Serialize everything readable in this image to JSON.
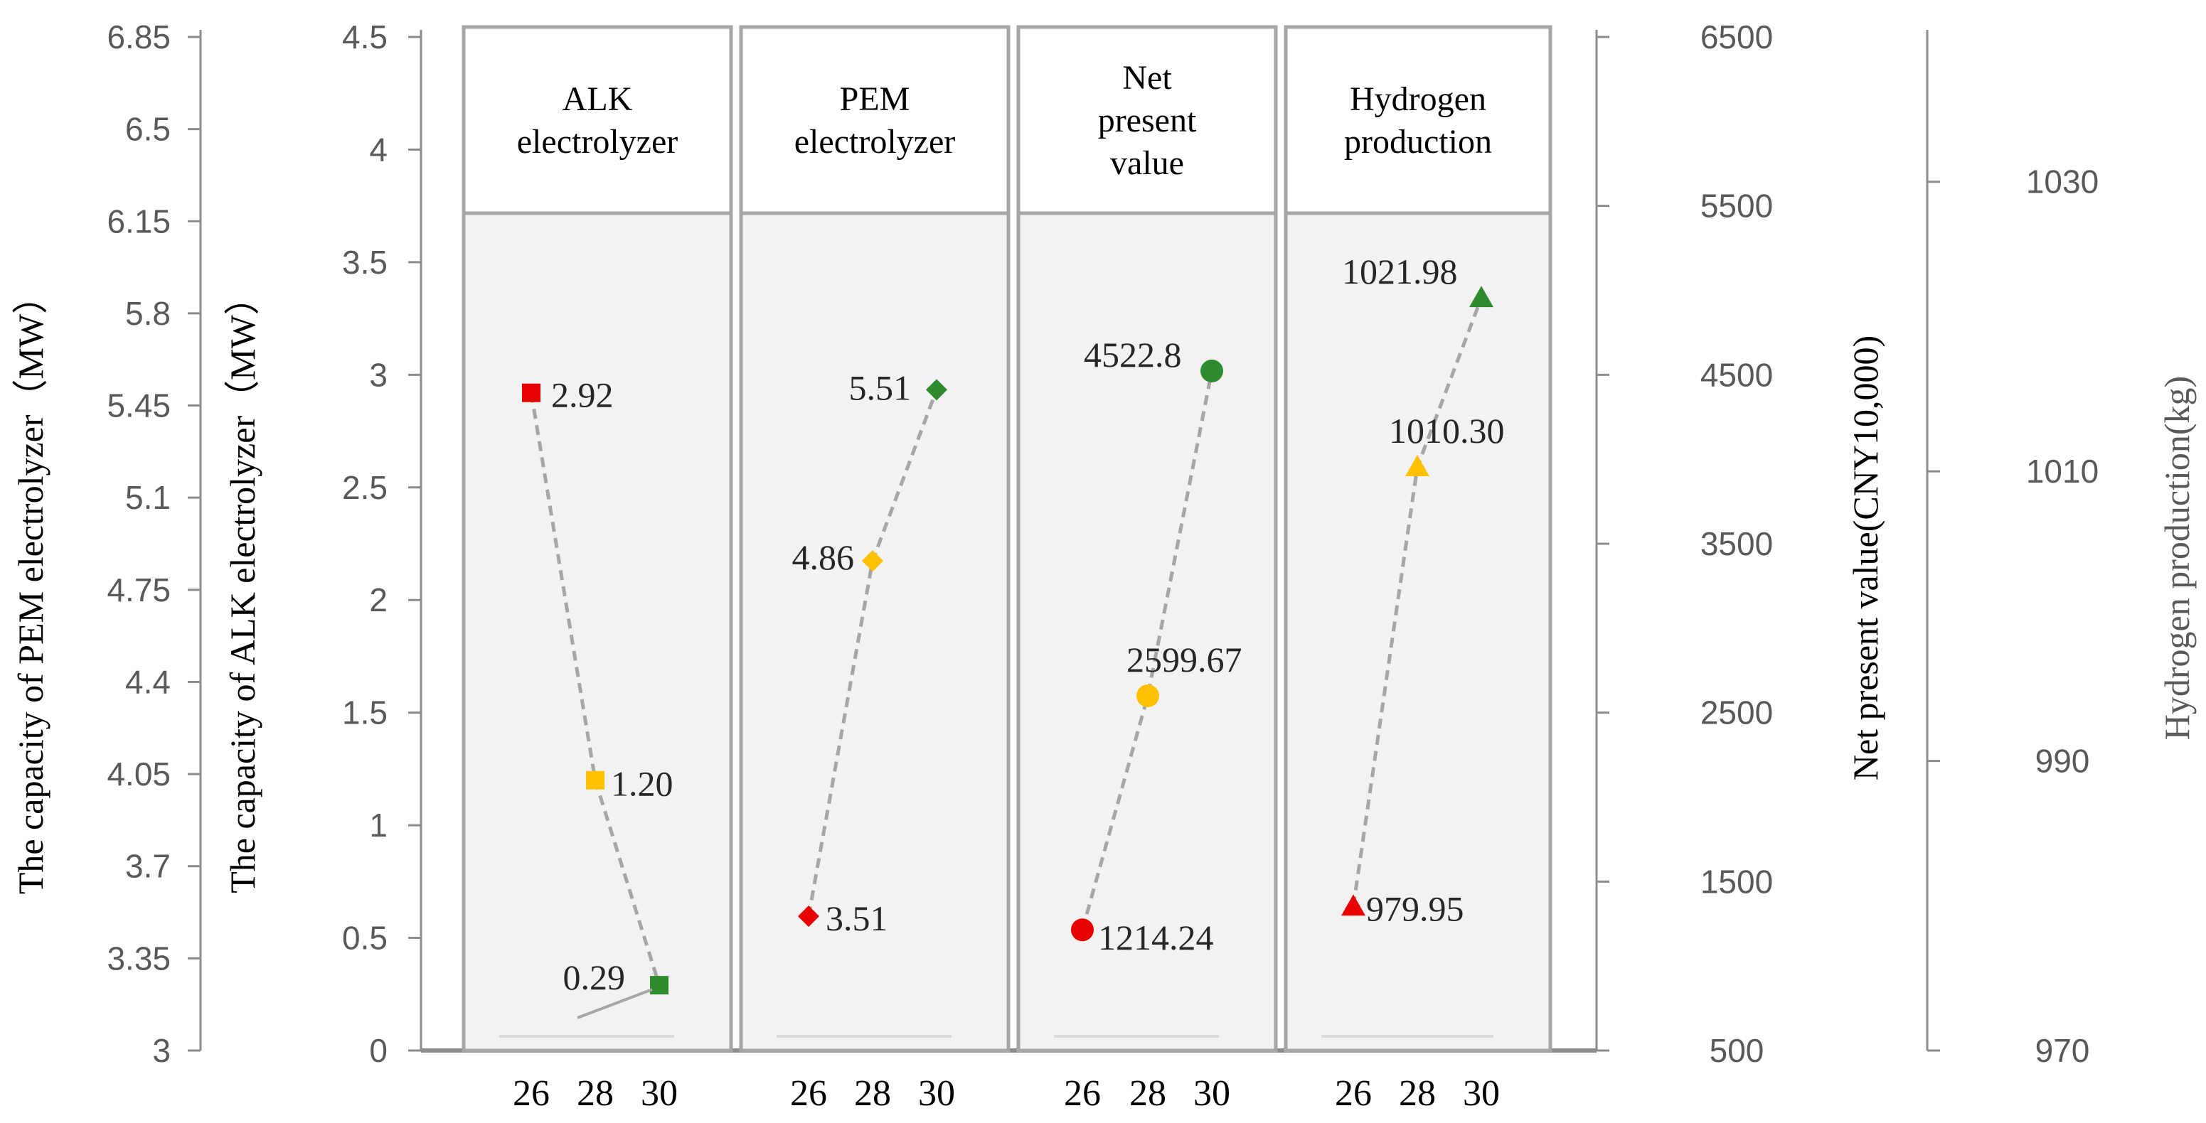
{
  "chart_data": {
    "type": "line",
    "x_categories": [
      "26",
      "28",
      "30"
    ],
    "left_axes": [
      {
        "key": "pem",
        "label": "The capacity of PEM electrolyzer（MW）",
        "min": 3,
        "max": 6.85,
        "ticks": [
          "3",
          "3.35",
          "3.7",
          "4.05",
          "4.4",
          "4.75",
          "5.1",
          "5.45",
          "5.8",
          "6.15",
          "6.5",
          "6.85"
        ]
      },
      {
        "key": "alk",
        "label": "The capacity of ALK electrolyzer（MW）",
        "min": 0,
        "max": 4.5,
        "ticks": [
          "0",
          "0.5",
          "1",
          "1.5",
          "2",
          "2.5",
          "3",
          "3.5",
          "4",
          "4.5"
        ]
      }
    ],
    "right_axes": [
      {
        "key": "npv",
        "label": "Net present value(CNY10,000)",
        "min": 500,
        "max": 6500,
        "ticks": [
          "500",
          "1500",
          "2500",
          "3500",
          "4500",
          "5500",
          "6500"
        ]
      },
      {
        "key": "h2",
        "label": "Hydrogen production(kg)",
        "min": 970,
        "max": 1040,
        "ticks": [
          "970",
          "990",
          "1010",
          "1030"
        ]
      }
    ],
    "panels": [
      {
        "title_lines": [
          "ALK",
          "electrolyzer"
        ],
        "axis": "alk",
        "marker": "square",
        "values": [
          2.92,
          1.2,
          0.29
        ],
        "labels": [
          "2.92",
          "1.20",
          "0.29"
        ],
        "colors": [
          "#e60000",
          "#ffc000",
          "#2e8b2e"
        ]
      },
      {
        "title_lines": [
          "PEM",
          "electrolyzer"
        ],
        "axis": "pem",
        "marker": "diamond",
        "values": [
          3.51,
          4.86,
          5.51
        ],
        "labels": [
          "3.51",
          "4.86",
          "5.51"
        ],
        "colors": [
          "#e60000",
          "#ffc000",
          "#2e8b2e"
        ]
      },
      {
        "title_lines": [
          "Net",
          "present",
          "value"
        ],
        "axis": "npv",
        "marker": "circle",
        "values": [
          1214.24,
          2599.67,
          4522.8
        ],
        "labels": [
          "1214.24",
          "2599.67",
          "4522.8"
        ],
        "colors": [
          "#e60000",
          "#ffc000",
          "#2e8b2e"
        ]
      },
      {
        "title_lines": [
          "Hydrogen",
          "production"
        ],
        "axis": "h2",
        "marker": "triangle",
        "values": [
          979.95,
          1010.3,
          1021.98
        ],
        "labels": [
          "979.95",
          "1010.30",
          "1021.98"
        ],
        "colors": [
          "#e60000",
          "#ffc000",
          "#2e8b2e"
        ]
      }
    ]
  }
}
